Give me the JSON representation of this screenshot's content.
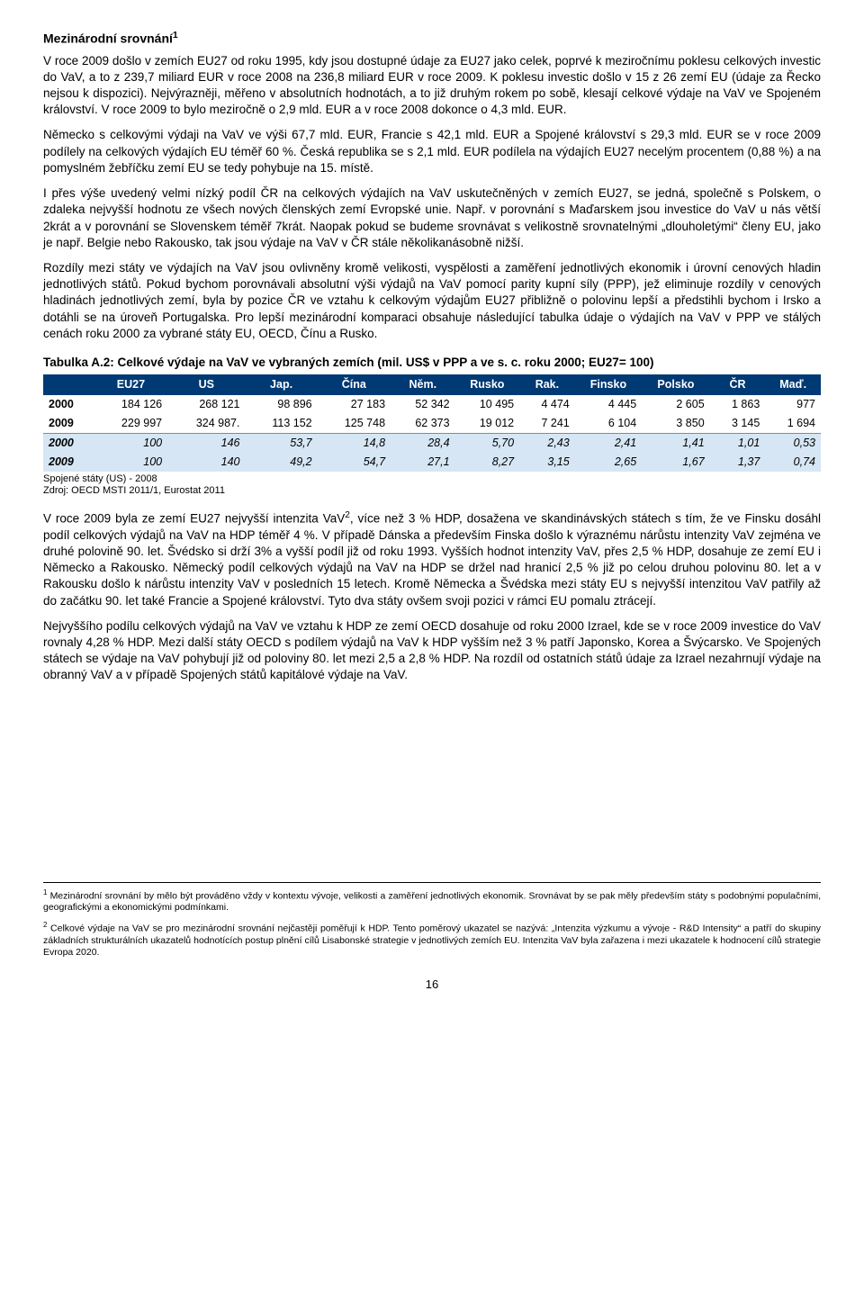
{
  "heading": "Mezinárodní srovnání",
  "heading_sup": "1",
  "paragraphs_top": [
    "V roce 2009 došlo v zemích EU27 od roku 1995, kdy jsou dostupné údaje za EU27 jako celek, poprvé k meziročnímu poklesu celkových investic do VaV, a to z 239,7 miliard EUR v roce 2008 na 236,8 miliard EUR v roce 2009. K poklesu investic došlo v 15 z 26 zemí EU (údaje za Řecko nejsou k dispozici). Nejvýrazněji, měřeno v absolutních hodnotách, a to již druhým rokem po sobě, klesají celkové výdaje na VaV ve Spojeném království. V roce 2009 to bylo meziročně o 2,9 mld. EUR a v roce 2008 dokonce o 4,3 mld. EUR.",
    "Německo s celkovými výdaji na VaV ve výši 67,7 mld. EUR, Francie s 42,1 mld. EUR a Spojené království s 29,3 mld. EUR se v roce 2009 podílely na celkových výdajích EU téměř 60 %. Česká republika se s 2,1 mld. EUR podílela na výdajích EU27 necelým procentem (0,88 %) a na pomyslném žebříčku zemí EU se tedy pohybuje na 15. místě.",
    "I přes výše uvedený velmi nízký podíl ČR na celkových výdajích na VaV uskutečněných v zemích EU27, se jedná, společně s Polskem, o zdaleka nejvyšší hodnotu ze všech nových členských zemí Evropské unie. Např. v porovnání s Maďarskem jsou investice do VaV u nás větší 2krát a v porovnání se Slovenskem téměř 7krát. Naopak pokud se budeme srovnávat s velikostně srovnatelnými „dlouholetými“ členy EU, jako je např. Belgie nebo Rakousko, tak jsou výdaje na VaV v ČR stále několikanásobně nižší.",
    "Rozdíly mezi státy ve výdajích na VaV jsou ovlivněny kromě velikosti, vyspělosti a zaměření jednotlivých ekonomik i úrovní cenových hladin jednotlivých států. Pokud bychom porovnávali absolutní výši výdajů na VaV pomocí parity kupní síly (PPP), jež eliminuje rozdíly v cenových hladinách jednotlivých zemí, byla by pozice ČR ve vztahu k celkovým výdajům EU27 přibližně o polovinu lepší a předstihli bychom i Irsko a dotáhli se na úroveň Portugalska. Pro lepší mezinárodní komparaci obsahuje následující tabulka údaje o výdajích na VaV v PPP ve stálých cenách roku 2000 za vybrané státy EU, OECD, Čínu a Rusko."
  ],
  "table": {
    "title": "Tabulka A.2: Celkové výdaje na VaV ve vybraných zemích (mil. US$ v PPP a ve s. c. roku 2000; EU27= 100)",
    "header_bg": "#003a75",
    "header_color": "#ffffff",
    "row_lightblue_bg": "#d6e6f4",
    "columns": [
      "",
      "EU27",
      "US",
      "Jap.",
      "Čína",
      "Něm.",
      "Rusko",
      "Rak.",
      "Finsko",
      "Polsko",
      "ČR",
      "Maď."
    ],
    "rows": [
      {
        "class": "white",
        "cells": [
          "2000",
          "184 126",
          "268 121",
          "98 896",
          "27 183",
          "52 342",
          "10 495",
          "4 474",
          "4 445",
          "2 605",
          "1 863",
          "977"
        ]
      },
      {
        "class": "white",
        "cells": [
          "2009",
          "229 997",
          "324 987.",
          "113 152",
          "125 748",
          "62 373",
          "19 012",
          "7 241",
          "6 104",
          "3 850",
          "3 145",
          "1 694"
        ]
      },
      {
        "class": "lightblue sep",
        "cells": [
          "2000",
          "100",
          "146",
          "53,7",
          "14,8",
          "28,4",
          "5,70",
          "2,43",
          "2,41",
          "1,41",
          "1,01",
          "0,53"
        ]
      },
      {
        "class": "lightblue",
        "cells": [
          "2009",
          "100",
          "140",
          "49,2",
          "54,7",
          "27,1",
          "8,27",
          "3,15",
          "2,65",
          "1,67",
          "1,37",
          "0,74"
        ]
      }
    ],
    "source": [
      "Spojené státy (US) - 2008",
      "Zdroj: OECD MSTI 2011/1, Eurostat 2011"
    ]
  },
  "paragraphs_bottom": [
    {
      "text_pre": "V roce 2009 byla ze zemí EU27 nejvyšší intenzita VaV",
      "sup": "2",
      "text_post": ", více než 3 % HDP, dosažena ve skandinávských státech s tím, že ve Finsku dosáhl podíl celkových výdajů na VaV na HDP téměř 4 %. V případě Dánska a především Finska došlo k výraznému nárůstu intenzity VaV zejména ve druhé polovině 90. let. Švédsko si drží 3% a vyšší podíl již od roku 1993. Vyšších hodnot intenzity VaV, přes 2,5 % HDP, dosahuje ze zemí EU i Německo a Rakousko. Německý podíl celkových výdajů na VaV na HDP se držel nad hranicí 2,5 % již po celou druhou polovinu 80. let a v Rakousku došlo k nárůstu intenzity VaV v posledních 15 letech. Kromě Německa a Švédska mezi státy EU s nejvyšší intenzitou VaV patřily až do začátku 90. let také Francie a Spojené království. Tyto dva státy ovšem svoji pozici v rámci EU pomalu ztrácejí."
    },
    {
      "text": "Nejvyššího podílu celkových výdajů na VaV ve vztahu k HDP ze zemí OECD dosahuje od roku 2000 Izrael, kde se v roce 2009 investice do VaV rovnaly 4,28 % HDP. Mezi další státy OECD s podílem výdajů na VaV k HDP vyšším než 3 % patří Japonsko, Korea a Švýcarsko. Ve Spojených státech se výdaje na VaV pohybují již od poloviny 80. let mezi 2,5 a 2,8 % HDP. Na rozdíl od ostatních států údaje za Izrael nezahrnují výdaje na obranný VaV a v případě Spojených států kapitálové výdaje na VaV."
    }
  ],
  "footnotes": [
    {
      "num": "1",
      "text": "Mezinárodní srovnání by mělo být prováděno vždy v kontextu vývoje, velikosti a zaměření jednotlivých ekonomik. Srovnávat by se pak měly především státy s podobnými populačními, geografickými a ekonomickými podmínkami."
    },
    {
      "num": "2",
      "italic_pre": "Celkové výdaje na VaV se pro mezinárodní srovnání nejčastěji poměřují k HDP. Tento poměrový ukazatel se nazývá: „Intenzita výzkumu a vývoje - R&D Intensity“ a patří do skupiny základních strukturálních ukazatelů hodnotících postup plnění cílů Lisabonské strategie v jednotlivých zemích EU. Intenzita VaV byla zařazena i mezi ukazatele k hodnocení cílů strategie Evropa 2020."
    }
  ],
  "page_number": "16"
}
